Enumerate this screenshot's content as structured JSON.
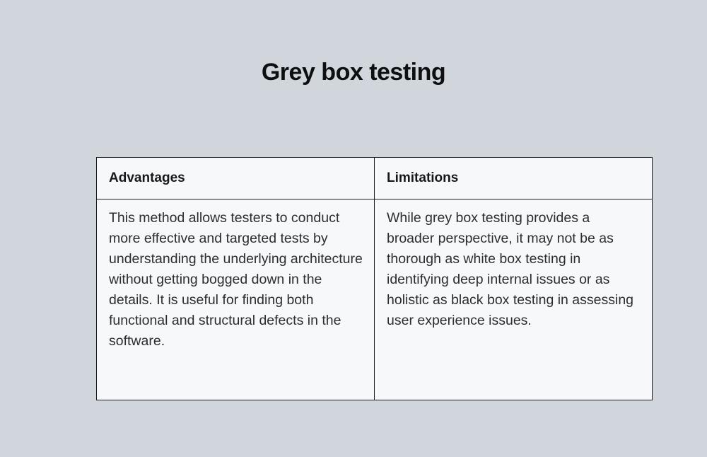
{
  "page": {
    "title": "Grey box testing"
  },
  "colors": {
    "page_background": "#d1d6dd",
    "cell_background": "#f7f8fa",
    "table_border": "#1b1c1f",
    "title_text": "#0e0f11",
    "body_text": "#2b2d31"
  },
  "table": {
    "columns": [
      {
        "header": "Advantages",
        "body": "This method allows testers to conduct more effective and targeted tests by understanding the underlying architecture without getting bogged down in the details. It is useful for finding both functional and structural defects in the software."
      },
      {
        "header": "Limitations",
        "body": "While grey box testing provides a broader perspective, it may not be as thorough as white box testing in identifying deep internal issues or as holistic as black box testing in assessing user experience issues."
      }
    ]
  }
}
